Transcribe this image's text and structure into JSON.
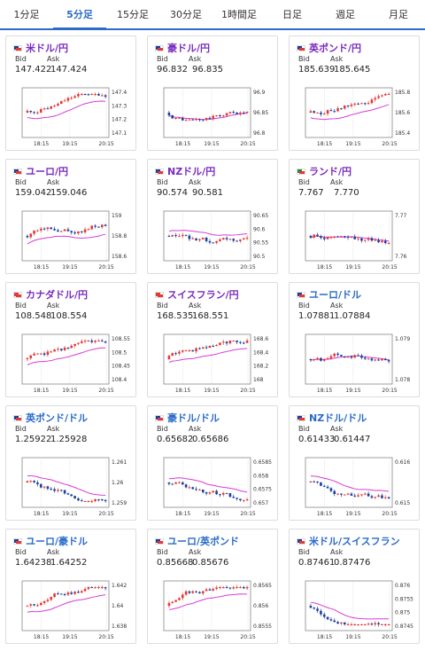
{
  "tabs": [
    {
      "label": "1分足",
      "active": false
    },
    {
      "label": "5分足",
      "active": true
    },
    {
      "label": "15分足",
      "active": false
    },
    {
      "label": "30分足",
      "active": false
    },
    {
      "label": "1時間足",
      "active": false
    },
    {
      "label": "日足",
      "active": false
    },
    {
      "label": "週足",
      "active": false
    },
    {
      "label": "月足",
      "active": false
    }
  ],
  "bid_label": "Bid",
  "ask_label": "Ask",
  "x_ticks": [
    "18:15",
    "19:15",
    "20:15"
  ],
  "colors": {
    "accent": "#2b6cc7",
    "up": "#e53935",
    "down": "#1a3f9e",
    "ma": "#d63cd6",
    "pair_text": "#7a2bbf"
  },
  "cards": [
    {
      "pair": "米ドル/円",
      "bid": "147.422",
      "ask": "147.424",
      "flag": [
        "#1a3f9e",
        "#e53935"
      ],
      "y_ticks": [
        "147.4",
        "147.3",
        "147.2",
        "147.1"
      ],
      "trend": "up"
    },
    {
      "pair": "豪ドル/円",
      "bid": "96.832",
      "ask": "96.835",
      "flag": [
        "#1a3f9e",
        "#e53935"
      ],
      "y_ticks": [
        "96.9",
        "96.85",
        "96.8"
      ],
      "trend": "flat"
    },
    {
      "pair": "英ポンド/円",
      "bid": "185.639",
      "ask": "185.645",
      "flag": [
        "#1a3f9e",
        "#e53935"
      ],
      "y_ticks": [
        "185.8",
        "185.6",
        "185.4"
      ],
      "trend": "up"
    },
    {
      "pair": "ユーロ/円",
      "bid": "159.042",
      "ask": "159.046",
      "flag": [
        "#1a3f9e",
        "#e53935"
      ],
      "y_ticks": [
        "159",
        "158.8",
        "158.6"
      ],
      "trend": "up"
    },
    {
      "pair": "NZドル/円",
      "bid": "90.574",
      "ask": "90.581",
      "flag": [
        "#1a3f9e",
        "#e53935"
      ],
      "y_ticks": [
        "90.65",
        "90.6",
        "90.55",
        "90.5"
      ],
      "trend": "down"
    },
    {
      "pair": "ランド/円",
      "bid": "7.767",
      "ask": "7.770",
      "flag": [
        "#1b8a3a",
        "#e53935"
      ],
      "y_ticks": [
        "7.77",
        "7.76"
      ],
      "trend": "flat"
    },
    {
      "pair": "カナダドル/円",
      "bid": "108.548",
      "ask": "108.554",
      "flag": [
        "#e53935",
        "#e53935"
      ],
      "y_ticks": [
        "108.55",
        "108.5",
        "108.45",
        "108.4"
      ],
      "trend": "up"
    },
    {
      "pair": "スイスフラン/円",
      "bid": "168.535",
      "ask": "168.551",
      "flag": [
        "#e53935",
        "#e53935"
      ],
      "y_ticks": [
        "168.6",
        "168.4",
        "168.2",
        "168"
      ],
      "trend": "up"
    },
    {
      "pair": "ユーロ/ドル",
      "bid": "1.07881",
      "ask": "1.07884",
      "flag": [
        "#1a3f9e",
        "#e53935"
      ],
      "y_ticks": [
        "1.079",
        "1.078"
      ],
      "trend": "flat"
    },
    {
      "pair": "英ポンド/ドル",
      "bid": "1.25922",
      "ask": "1.25928",
      "flag": [
        "#1a3f9e",
        "#e53935"
      ],
      "y_ticks": [
        "1.261",
        "1.26",
        "1.259"
      ],
      "trend": "down"
    },
    {
      "pair": "豪ドル/ドル",
      "bid": "0.65682",
      "ask": "0.65686",
      "flag": [
        "#1a3f9e",
        "#e53935"
      ],
      "y_ticks": [
        "0.6585",
        "0.658",
        "0.6575",
        "0.657"
      ],
      "trend": "down"
    },
    {
      "pair": "NZドル/ドル",
      "bid": "0.61433",
      "ask": "0.61447",
      "flag": [
        "#1a3f9e",
        "#e53935"
      ],
      "y_ticks": [
        "0.616",
        "0.615"
      ],
      "trend": "down"
    },
    {
      "pair": "ユーロ/豪ドル",
      "bid": "1.64238",
      "ask": "1.64252",
      "flag": [
        "#1a3f9e",
        "#e53935"
      ],
      "y_ticks": [
        "1.642",
        "1.64",
        "1.638"
      ],
      "trend": "up"
    },
    {
      "pair": "ユーロ/英ポンド",
      "bid": "0.85668",
      "ask": "0.85676",
      "flag": [
        "#1a3f9e",
        "#e53935"
      ],
      "y_ticks": [
        "0.8565",
        "0.856",
        "0.8555"
      ],
      "trend": "up"
    },
    {
      "pair": "米ドル/スイスフラン",
      "bid": "0.87461",
      "ask": "0.87476",
      "flag": [
        "#1a3f9e",
        "#e53935"
      ],
      "y_ticks": [
        "0.876",
        "0.8755",
        "0.875",
        "0.8745"
      ],
      "trend": "down"
    }
  ]
}
